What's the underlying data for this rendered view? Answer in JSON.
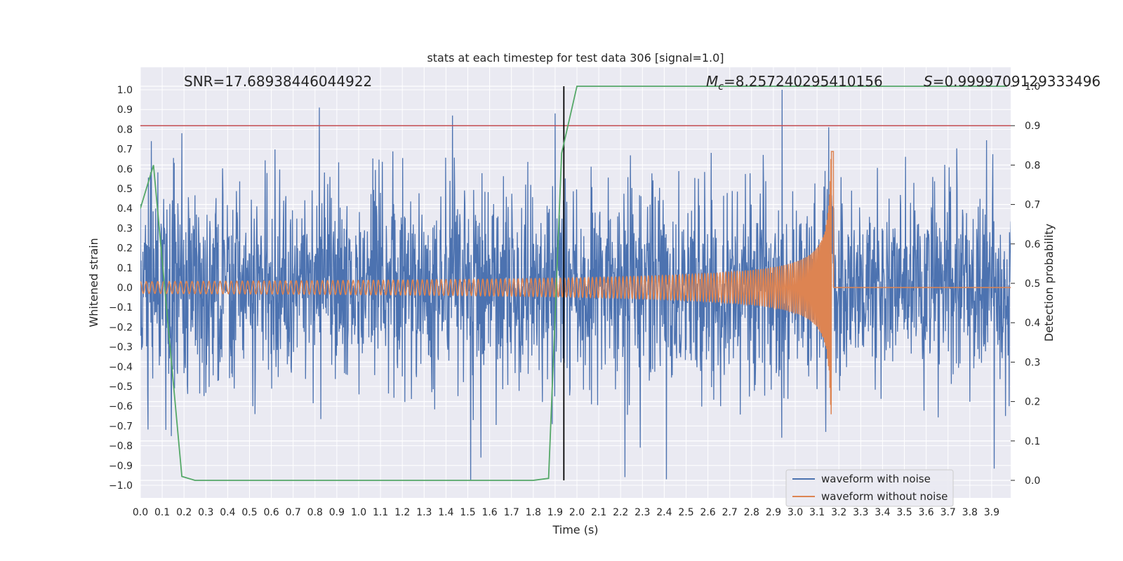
{
  "chart_data": {
    "type": "line",
    "title": "stats at each timestep for test data 306 [signal=1.0]",
    "xlabel": "Time (s)",
    "ylabel": "Whitened strain",
    "y2label": "Detection probability",
    "xlim": [
      0.0,
      4.0
    ],
    "ylim": [
      -1.08,
      1.08
    ],
    "y2lim": [
      -0.05,
      1.0
    ],
    "x_ticks": [
      0.0,
      0.1,
      0.2,
      0.3,
      0.4,
      0.5,
      0.6,
      0.7,
      0.8,
      0.9,
      1.0,
      1.1,
      1.2,
      1.3,
      1.4,
      1.5,
      1.6,
      1.7,
      1.8,
      1.9,
      2.0,
      2.1,
      2.2,
      2.3,
      2.4,
      2.5,
      2.6,
      2.7,
      2.8,
      2.9,
      3.0,
      3.1,
      3.2,
      3.3,
      3.4,
      3.5,
      3.6,
      3.7,
      3.8,
      3.9
    ],
    "x_tick_labels": [
      "0.0",
      "0.1",
      "0.2",
      "0.3",
      "0.4",
      "0.5",
      "0.6",
      "0.7",
      "0.8",
      "0.9",
      "1.0",
      "1.1",
      "1.2",
      "1.3",
      "1.4",
      "1.5",
      "1.6",
      "1.7",
      "1.8",
      "1.9",
      "2.0",
      "2.1",
      "2.2",
      "2.3",
      "2.4",
      "2.5",
      "2.6",
      "2.7",
      "2.8",
      "2.9",
      "3.0",
      "3.1",
      "3.2",
      "3.3",
      "3.4",
      "3.5",
      "3.6",
      "3.7",
      "3.8",
      "3.9"
    ],
    "y_ticks": [
      1.0,
      0.9,
      0.8,
      0.7,
      0.6,
      0.5,
      0.4,
      0.3,
      0.2,
      0.1,
      0.0,
      -0.1,
      -0.2,
      -0.3,
      -0.4,
      -0.5,
      -0.6,
      -0.7,
      -0.8,
      -0.9,
      -1.0
    ],
    "y_tick_labels": [
      "1.0",
      "0.9",
      "0.8",
      "0.7",
      "0.6",
      "0.5",
      "0.4",
      "0.3",
      "0.2",
      "0.1",
      "0.0",
      "−0.1",
      "−0.2",
      "−0.3",
      "−0.4",
      "−0.5",
      "−0.6",
      "−0.7",
      "−0.8",
      "−0.9",
      "−1.0"
    ],
    "y2_ticks": [
      1.0,
      0.9,
      0.8,
      0.7,
      0.6,
      0.5,
      0.4,
      0.3,
      0.2,
      0.1,
      0.0
    ],
    "y2_tick_labels": [
      "1.0",
      "0.9",
      "0.8",
      "0.7",
      "0.6",
      "0.5",
      "0.4",
      "0.3",
      "0.2",
      "0.1",
      "0.0"
    ],
    "grid": true,
    "legend_position": "bottom-right",
    "annotations": {
      "snr": "SNR=17.68938446044922",
      "mc_symbol": "M",
      "mc_subscript": "c",
      "mc_value": "=8.257240295410156",
      "s_symbol": "S",
      "s_value": "=0.9999709129333496"
    },
    "marker_time": 1.94,
    "threshold_y2": 0.9,
    "series": [
      {
        "name": "waveform with noise",
        "color": "#4c72b0",
        "axis": "left",
        "description": "noisy whitened strain, approx. std 0.25, peaks up to 1.0 near t=2.94 s",
        "noise_sigma": 0.25,
        "spikes": [
          [
            0.05,
            0.74
          ],
          [
            0.19,
            0.78
          ],
          [
            0.82,
            0.91
          ],
          [
            1.43,
            0.87
          ],
          [
            1.56,
            -0.86
          ],
          [
            2.29,
            -0.81
          ],
          [
            2.41,
            -0.97
          ],
          [
            2.94,
            1.0
          ],
          [
            3.14,
            -0.73
          ],
          [
            3.98,
            -0.6
          ]
        ]
      },
      {
        "name": "waveform without noise",
        "color": "#dd8452",
        "axis": "left",
        "description": "chirp signal ending (merger) at t≈3.17 s",
        "merger_time": 3.17,
        "amp_start": 0.03,
        "amp_peak": 0.76,
        "cycles_to_merger": 190
      },
      {
        "color": "#55a868",
        "axis": "right",
        "x": [
          0.0,
          0.06,
          0.19,
          0.25,
          1.8,
          1.87,
          1.93,
          2.0,
          3.97
        ],
        "y": [
          0.69,
          0.8,
          0.01,
          0.0,
          0.0,
          0.005,
          0.83,
          1.0,
          1.0
        ]
      }
    ]
  }
}
